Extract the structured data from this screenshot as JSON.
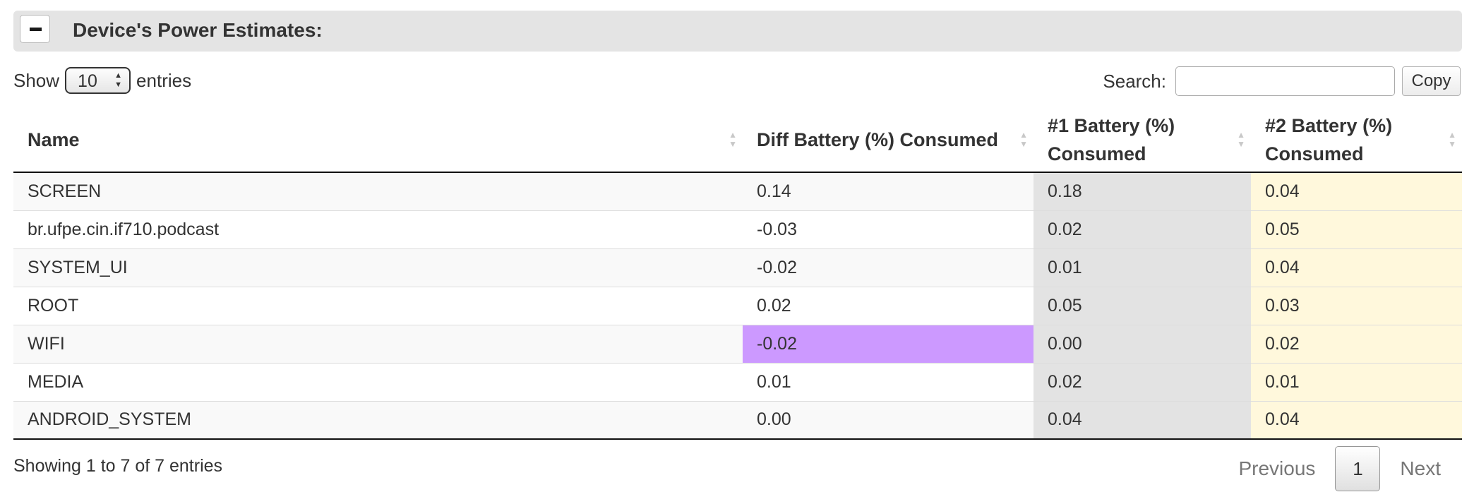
{
  "panel": {
    "title": "Device's Power Estimates:"
  },
  "length": {
    "show": "Show",
    "value": "10",
    "entries": "entries"
  },
  "search": {
    "label": "Search:",
    "value": "",
    "copy": "Copy"
  },
  "table": {
    "columns": [
      {
        "label": "Name"
      },
      {
        "label": "Diff Battery (%) Consumed"
      },
      {
        "label": "#1 Battery (%) Consumed"
      },
      {
        "label": "#2 Battery (%) Consumed"
      }
    ],
    "rows": [
      [
        "SCREEN",
        "0.14",
        "0.18",
        "0.04"
      ],
      [
        "br.ufpe.cin.if710.podcast",
        "-0.03",
        "0.02",
        "0.05"
      ],
      [
        "SYSTEM_UI",
        "-0.02",
        "0.01",
        "0.04"
      ],
      [
        "ROOT",
        "0.02",
        "0.05",
        "0.03"
      ],
      [
        "WIFI",
        "-0.02",
        "0.00",
        "0.02"
      ],
      [
        "MEDIA",
        "0.01",
        "0.02",
        "0.01"
      ],
      [
        "ANDROID_SYSTEM",
        "0.00",
        "0.04",
        "0.04"
      ]
    ],
    "highlight_color": "#cc99ff",
    "col2_color": "#e3e3e3",
    "col3_color": "#fff8dc"
  },
  "info": "Showing 1 to 7 of 7 entries",
  "pagination": {
    "previous": "Previous",
    "page": "1",
    "next": "Next"
  }
}
